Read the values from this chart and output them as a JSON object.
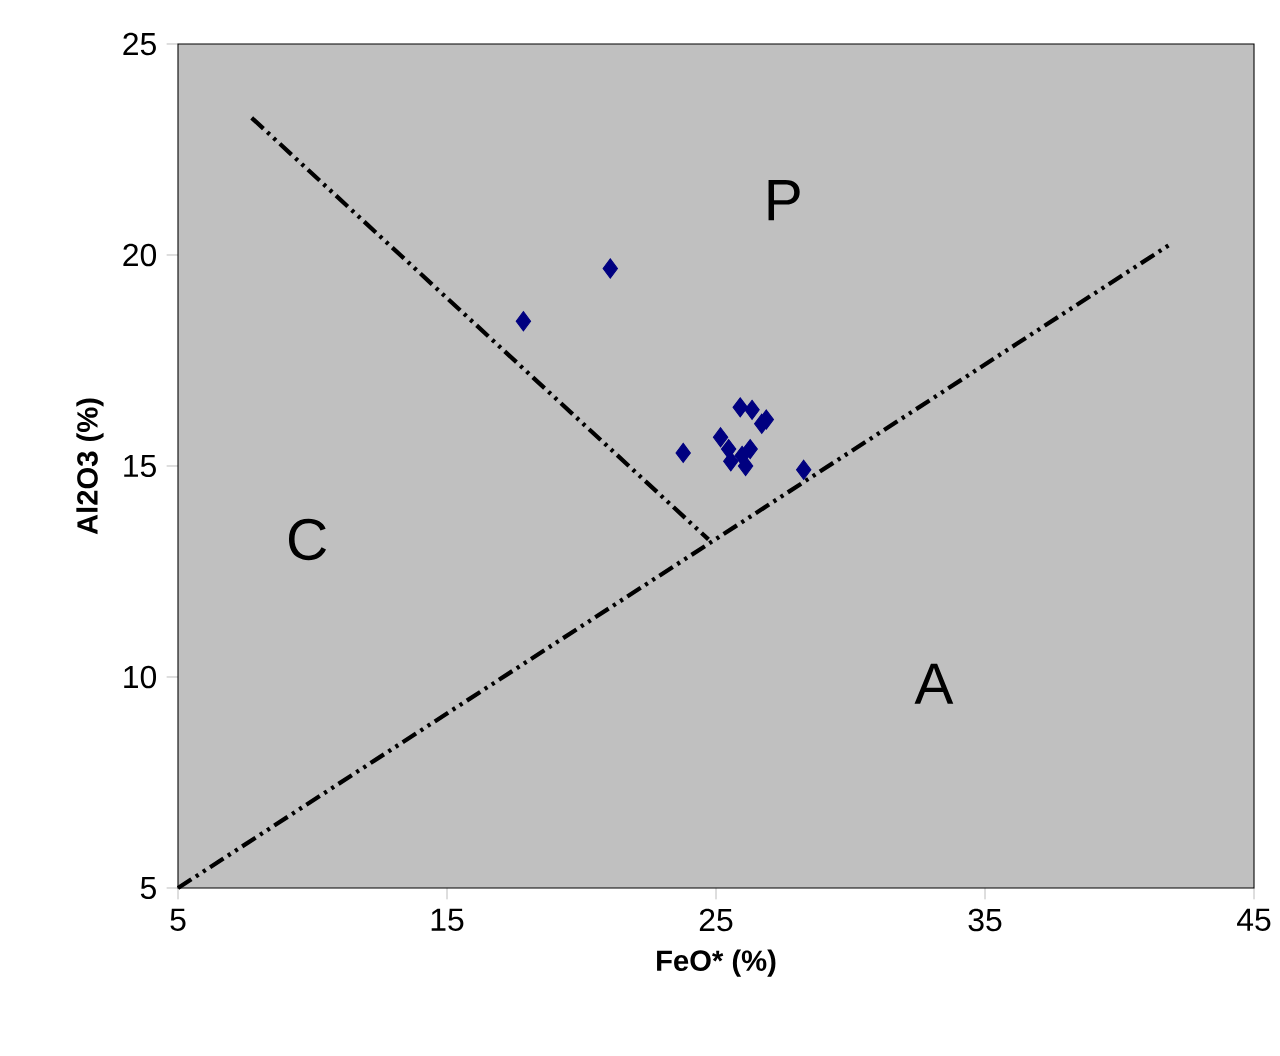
{
  "chart_data": {
    "type": "scatter",
    "xlabel": "FeO* (%)",
    "ylabel": "Al2O3 (%)",
    "xlim": [
      5,
      45
    ],
    "ylim": [
      5,
      25
    ],
    "xticks": [
      5,
      15,
      25,
      35,
      45
    ],
    "yticks": [
      5,
      10,
      15,
      20,
      25
    ],
    "grid": false,
    "series": [
      {
        "color": "#000080",
        "marker": "diamond",
        "x": [
          21.07,
          17.84,
          23.78,
          28.26,
          25.9,
          26.34,
          26.87,
          26.7,
          25.17,
          25.47,
          26.27,
          25.55,
          26.1,
          25.97
        ],
        "values": [
          19.68,
          18.43,
          15.31,
          14.91,
          16.39,
          16.33,
          16.1,
          16.0,
          15.68,
          15.4,
          15.4,
          15.11,
          15.0,
          15.24
        ]
      },
      {
        "type": "line",
        "color": "#000000",
        "marker": "none",
        "line_style": "dashed",
        "x": [
          5,
          41.9
        ],
        "values": [
          5,
          20.26
        ]
      },
      {
        "type": "line",
        "color": "#000000",
        "marker": "none",
        "line_style": "dashed",
        "x": [
          7.74,
          24.72
        ],
        "values": [
          23.25,
          13.26
        ]
      }
    ],
    "annotations": [
      "P",
      "C",
      "A"
    ]
  }
}
